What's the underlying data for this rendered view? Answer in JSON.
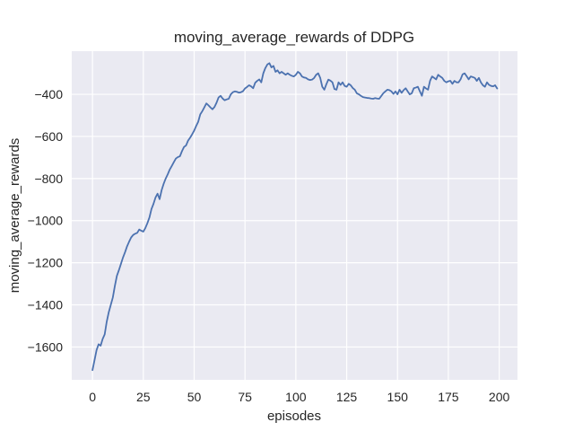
{
  "chart_data": {
    "type": "line",
    "title": "moving_average_rewards of DDPG",
    "xlabel": "episodes",
    "ylabel": "moving_average_rewards",
    "xlim": [
      -10.2,
      209
    ],
    "ylim": [
      -1756,
      -195
    ],
    "xticks": [
      0,
      25,
      50,
      75,
      100,
      125,
      150,
      175,
      200
    ],
    "xtick_labels": [
      "0",
      "25",
      "50",
      "75",
      "100",
      "125",
      "150",
      "175",
      "200"
    ],
    "yticks": [
      -400,
      -600,
      -800,
      -1000,
      -1200,
      -1400,
      -1600
    ],
    "ytick_labels": [
      "−400",
      "−600",
      "−800",
      "−1000",
      "−1200",
      "−1400",
      "−1600"
    ],
    "grid": true,
    "legend": "none",
    "colors": {
      "line": "#4C72B0",
      "plot_bg": "#EAEAF2",
      "grid": "#FFFFFF",
      "text": "#262626"
    },
    "series": [
      {
        "name": "moving_average_rewards",
        "x": [
          0,
          1,
          2,
          3,
          4,
          5,
          6,
          7,
          8,
          9,
          10,
          11,
          12,
          13,
          14,
          15,
          16,
          17,
          18,
          19,
          20,
          21,
          22,
          23,
          24,
          25,
          26,
          27,
          28,
          29,
          30,
          31,
          32,
          33,
          34,
          35,
          36,
          37,
          38,
          39,
          40,
          41,
          42,
          43,
          44,
          45,
          46,
          47,
          48,
          49,
          50,
          51,
          52,
          53,
          54,
          55,
          56,
          57,
          58,
          59,
          60,
          61,
          62,
          63,
          64,
          65,
          66,
          67,
          68,
          69,
          70,
          71,
          72,
          73,
          74,
          75,
          76,
          77,
          78,
          79,
          80,
          81,
          82,
          83,
          84,
          85,
          86,
          87,
          88,
          89,
          90,
          91,
          92,
          93,
          94,
          95,
          96,
          97,
          98,
          99,
          100,
          101,
          102,
          103,
          104,
          105,
          106,
          107,
          108,
          109,
          110,
          111,
          112,
          113,
          114,
          115,
          116,
          117,
          118,
          119,
          120,
          121,
          122,
          123,
          124,
          125,
          126,
          127,
          128,
          129,
          130,
          131,
          132,
          133,
          134,
          135,
          136,
          137,
          138,
          139,
          140,
          141,
          142,
          143,
          144,
          145,
          146,
          147,
          148,
          149,
          150,
          151,
          152,
          153,
          154,
          155,
          156,
          157,
          158,
          159,
          160,
          161,
          162,
          163,
          164,
          165,
          166,
          167,
          168,
          169,
          170,
          171,
          172,
          173,
          174,
          175,
          176,
          177,
          178,
          179,
          180,
          181,
          182,
          183,
          184,
          185,
          186,
          187,
          188,
          189,
          190,
          191,
          192,
          193,
          194,
          195,
          196,
          197,
          198,
          199
        ],
        "y": [
          -1710,
          -1663,
          -1615,
          -1587,
          -1594,
          -1562,
          -1540,
          -1480,
          -1435,
          -1400,
          -1365,
          -1310,
          -1262,
          -1235,
          -1205,
          -1175,
          -1150,
          -1122,
          -1100,
          -1080,
          -1068,
          -1062,
          -1058,
          -1042,
          -1048,
          -1052,
          -1035,
          -1012,
          -985,
          -945,
          -920,
          -890,
          -872,
          -898,
          -855,
          -825,
          -800,
          -780,
          -757,
          -740,
          -722,
          -705,
          -698,
          -694,
          -670,
          -650,
          -643,
          -620,
          -606,
          -590,
          -572,
          -550,
          -530,
          -495,
          -480,
          -462,
          -443,
          -452,
          -462,
          -471,
          -460,
          -440,
          -415,
          -407,
          -420,
          -428,
          -424,
          -421,
          -400,
          -390,
          -386,
          -388,
          -392,
          -390,
          -385,
          -372,
          -365,
          -357,
          -362,
          -371,
          -345,
          -336,
          -329,
          -343,
          -300,
          -275,
          -258,
          -252,
          -272,
          -265,
          -293,
          -286,
          -300,
          -293,
          -300,
          -307,
          -300,
          -307,
          -312,
          -315,
          -307,
          -293,
          -300,
          -315,
          -320,
          -322,
          -329,
          -332,
          -330,
          -322,
          -307,
          -300,
          -322,
          -364,
          -378,
          -352,
          -330,
          -335,
          -343,
          -375,
          -378,
          -343,
          -355,
          -343,
          -360,
          -364,
          -350,
          -357,
          -370,
          -378,
          -395,
          -400,
          -407,
          -413,
          -415,
          -417,
          -418,
          -420,
          -421,
          -418,
          -420,
          -421,
          -408,
          -395,
          -386,
          -378,
          -380,
          -386,
          -398,
          -386,
          -400,
          -378,
          -393,
          -380,
          -371,
          -386,
          -400,
          -395,
          -371,
          -368,
          -364,
          -386,
          -407,
          -364,
          -372,
          -378,
          -336,
          -315,
          -322,
          -329,
          -307,
          -315,
          -322,
          -336,
          -343,
          -338,
          -336,
          -350,
          -336,
          -343,
          -343,
          -329,
          -305,
          -300,
          -314,
          -329,
          -315,
          -318,
          -322,
          -336,
          -322,
          -343,
          -357,
          -364,
          -343,
          -355,
          -360,
          -362,
          -357,
          -372
        ]
      }
    ]
  }
}
